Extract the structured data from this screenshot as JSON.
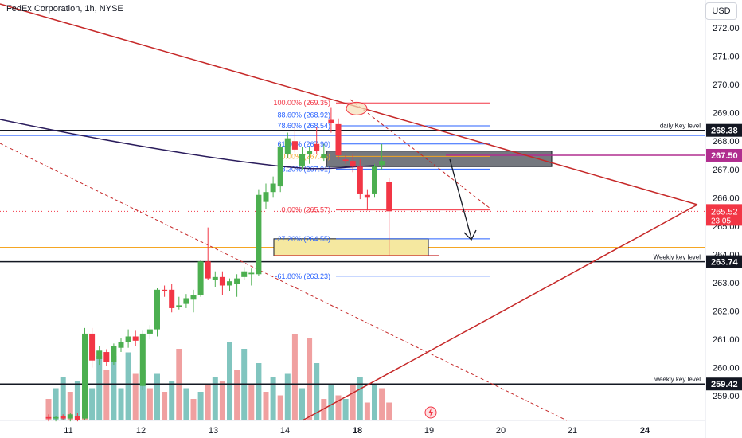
{
  "header": {
    "title": "FedEx Corporation, 1h, NYSE",
    "currency_button": "USD"
  },
  "chart_data": {
    "type": "candlestick",
    "title": "FedEx Corporation, 1h, NYSE",
    "ylim": [
      258.1,
      272.6
    ],
    "y_ticks": [
      259,
      260,
      261,
      262,
      263,
      264,
      265,
      266,
      267,
      268,
      269,
      270,
      271,
      272
    ],
    "x_ticks": [
      "11",
      "12",
      "13",
      "14",
      "18",
      "19",
      "20",
      "21",
      "24"
    ],
    "candles": [
      {
        "o": 258.25,
        "h": 258.35,
        "l": 258.1,
        "c": 258.2
      },
      {
        "o": 258.2,
        "h": 258.3,
        "l": 258.1,
        "c": 258.25
      },
      {
        "o": 258.3,
        "h": 258.35,
        "l": 258.15,
        "c": 258.2
      },
      {
        "o": 258.2,
        "h": 258.4,
        "l": 258.1,
        "c": 258.35
      },
      {
        "o": 258.3,
        "h": 258.4,
        "l": 258.1,
        "c": 258.15
      },
      {
        "o": 258.2,
        "h": 261.4,
        "l": 258.15,
        "c": 261.2
      },
      {
        "o": 261.2,
        "h": 261.4,
        "l": 260.0,
        "c": 260.25
      },
      {
        "o": 260.3,
        "h": 260.75,
        "l": 260.1,
        "c": 260.6
      },
      {
        "o": 260.55,
        "h": 260.65,
        "l": 260.05,
        "c": 260.2
      },
      {
        "o": 260.2,
        "h": 260.85,
        "l": 260.1,
        "c": 260.75
      },
      {
        "o": 260.7,
        "h": 261.05,
        "l": 260.55,
        "c": 260.9
      },
      {
        "o": 260.9,
        "h": 261.35,
        "l": 260.7,
        "c": 261.1
      },
      {
        "o": 261.1,
        "h": 261.3,
        "l": 260.75,
        "c": 260.95
      },
      {
        "o": 259.35,
        "h": 261.3,
        "l": 259.2,
        "c": 261.2
      },
      {
        "o": 261.2,
        "h": 261.5,
        "l": 261.0,
        "c": 261.35
      },
      {
        "o": 261.35,
        "h": 262.8,
        "l": 261.1,
        "c": 262.75
      },
      {
        "o": 262.75,
        "h": 262.9,
        "l": 262.5,
        "c": 262.7
      },
      {
        "o": 262.75,
        "h": 262.95,
        "l": 261.95,
        "c": 262.1
      },
      {
        "o": 262.15,
        "h": 262.5,
        "l": 262.05,
        "c": 262.2
      },
      {
        "o": 262.25,
        "h": 262.6,
        "l": 262.1,
        "c": 262.45
      },
      {
        "o": 262.4,
        "h": 262.75,
        "l": 261.95,
        "c": 262.55
      },
      {
        "o": 262.55,
        "h": 263.8,
        "l": 262.5,
        "c": 263.75
      },
      {
        "o": 263.75,
        "h": 264.95,
        "l": 263.1,
        "c": 263.15
      },
      {
        "o": 263.1,
        "h": 263.4,
        "l": 262.85,
        "c": 263.2
      },
      {
        "o": 263.2,
        "h": 263.4,
        "l": 262.55,
        "c": 262.9
      },
      {
        "o": 262.9,
        "h": 263.15,
        "l": 262.7,
        "c": 263.05
      },
      {
        "o": 262.95,
        "h": 263.3,
        "l": 262.5,
        "c": 263.15
      },
      {
        "o": 263.2,
        "h": 263.55,
        "l": 263.1,
        "c": 263.4
      },
      {
        "o": 263.3,
        "h": 263.5,
        "l": 262.9,
        "c": 263.35
      },
      {
        "o": 263.3,
        "h": 266.3,
        "l": 263.25,
        "c": 266.1
      },
      {
        "o": 265.85,
        "h": 266.5,
        "l": 265.6,
        "c": 266.2
      },
      {
        "o": 266.2,
        "h": 266.75,
        "l": 266.0,
        "c": 266.5
      },
      {
        "o": 266.4,
        "h": 267.9,
        "l": 266.2,
        "c": 267.8
      },
      {
        "o": 267.55,
        "h": 268.3,
        "l": 267.4,
        "c": 268.1
      },
      {
        "o": 268.0,
        "h": 268.6,
        "l": 267.6,
        "c": 267.7
      },
      {
        "o": 267.1,
        "h": 267.8,
        "l": 267.0,
        "c": 267.55
      },
      {
        "o": 267.55,
        "h": 267.8,
        "l": 267.2,
        "c": 267.65
      },
      {
        "o": 267.9,
        "h": 268.5,
        "l": 267.55,
        "c": 267.65
      },
      {
        "o": 267.4,
        "h": 267.9,
        "l": 267.3,
        "c": 267.55
      },
      {
        "o": 268.75,
        "h": 269.2,
        "l": 268.3,
        "c": 268.65
      },
      {
        "o": 268.6,
        "h": 268.8,
        "l": 267.35,
        "c": 267.5
      },
      {
        "o": 267.35,
        "h": 267.5,
        "l": 267.2,
        "c": 267.3
      },
      {
        "o": 267.3,
        "h": 267.55,
        "l": 266.9,
        "c": 267.1
      },
      {
        "o": 267.1,
        "h": 267.35,
        "l": 265.95,
        "c": 266.15
      },
      {
        "o": 266.1,
        "h": 266.3,
        "l": 265.55,
        "c": 266.0
      },
      {
        "o": 266.15,
        "h": 267.2,
        "l": 266.0,
        "c": 267.1
      },
      {
        "o": 267.15,
        "h": 267.9,
        "l": 267.0,
        "c": 267.3
      },
      {
        "o": 266.55,
        "h": 266.7,
        "l": 263.95,
        "c": 265.52
      }
    ],
    "volume": [
      {
        "v": 0.6,
        "up": false
      },
      {
        "v": 0.9,
        "up": true
      },
      {
        "v": 1.2,
        "up": true
      },
      {
        "v": 0.8,
        "up": false
      },
      {
        "v": 1.1,
        "up": true
      },
      {
        "v": 2.3,
        "up": false
      },
      {
        "v": 0.9,
        "up": true
      },
      {
        "v": 1.8,
        "up": true
      },
      {
        "v": 1.4,
        "up": false
      },
      {
        "v": 1.8,
        "up": true
      },
      {
        "v": 0.9,
        "up": true
      },
      {
        "v": 1.9,
        "up": true
      },
      {
        "v": 1.3,
        "up": false
      },
      {
        "v": 1.4,
        "up": true
      },
      {
        "v": 0.9,
        "up": false
      },
      {
        "v": 1.3,
        "up": true
      },
      {
        "v": 0.8,
        "up": false
      },
      {
        "v": 1.1,
        "up": true
      },
      {
        "v": 2.0,
        "up": false
      },
      {
        "v": 0.9,
        "up": true
      },
      {
        "v": 0.6,
        "up": false
      },
      {
        "v": 0.8,
        "up": true
      },
      {
        "v": 1.0,
        "up": false
      },
      {
        "v": 1.2,
        "up": true
      },
      {
        "v": 1.1,
        "up": false
      },
      {
        "v": 2.2,
        "up": true
      },
      {
        "v": 1.4,
        "up": false
      },
      {
        "v": 2.0,
        "up": true
      },
      {
        "v": 1.0,
        "up": false
      },
      {
        "v": 1.6,
        "up": true
      },
      {
        "v": 0.8,
        "up": false
      },
      {
        "v": 1.2,
        "up": true
      },
      {
        "v": 0.7,
        "up": false
      },
      {
        "v": 1.3,
        "up": true
      },
      {
        "v": 2.4,
        "up": false
      },
      {
        "v": 0.9,
        "up": true
      },
      {
        "v": 2.3,
        "up": false
      },
      {
        "v": 1.6,
        "up": true
      },
      {
        "v": 0.6,
        "up": false
      },
      {
        "v": 1.0,
        "up": true
      },
      {
        "v": 0.7,
        "up": false
      },
      {
        "v": 0.6,
        "up": true
      },
      {
        "v": 1.0,
        "up": false
      },
      {
        "v": 1.2,
        "up": true
      },
      {
        "v": 0.5,
        "up": false
      },
      {
        "v": 1.0,
        "up": true
      },
      {
        "v": 0.9,
        "up": false
      },
      {
        "v": 0.5,
        "up": false
      }
    ],
    "fib_levels": [
      {
        "label": "100.00% (269.35)",
        "price": 269.35,
        "color": "#f23645"
      },
      {
        "label": "88.60% (268.92)",
        "price": 268.92,
        "color": "#2962ff"
      },
      {
        "label": "78.60% (268.54)",
        "price": 268.54,
        "color": "#2962ff"
      },
      {
        "label": "61.80% (267.90)",
        "price": 267.9,
        "color": "#2962ff"
      },
      {
        "label": "50.00% (267.46)",
        "price": 267.46,
        "color": "#f5a623"
      },
      {
        "label": "38.20% (267.01)",
        "price": 267.01,
        "color": "#2962ff"
      },
      {
        "label": "0.00% (265.57)",
        "price": 265.57,
        "color": "#f23645"
      },
      {
        "label": "-27.20% (264.55)",
        "price": 264.55,
        "color": "#2962ff"
      },
      {
        "label": "-61.80% (263.23)",
        "price": 263.23,
        "color": "#2962ff"
      }
    ],
    "key_levels": [
      {
        "label": "daily Key level",
        "price": 268.38
      },
      {
        "label": "Weekly key level",
        "price": 263.74
      },
      {
        "label": "weekly key level",
        "price": 259.42
      }
    ],
    "price_badges": [
      {
        "text": "268.38",
        "price": 268.38,
        "bg": "#131722",
        "fg": "#ffffff"
      },
      {
        "text": "267.50",
        "price": 267.5,
        "bg": "#b02e8f",
        "fg": "#ffffff"
      },
      {
        "text": "263.74",
        "price": 263.74,
        "bg": "#131722",
        "fg": "#ffffff"
      },
      {
        "text": "259.42",
        "price": 259.42,
        "bg": "#131722",
        "fg": "#ffffff"
      }
    ],
    "last_price": {
      "price": 265.52,
      "text": "265.52",
      "countdown": "23:05",
      "color": "#f23645"
    },
    "horizontal_lines": [
      {
        "price": 268.2,
        "color": "#2962ff",
        "style": "solid"
      },
      {
        "price": 264.25,
        "color": "#f5a623",
        "style": "solid"
      },
      {
        "price": 260.2,
        "color": "#2962ff",
        "style": "solid"
      }
    ],
    "zones": [
      {
        "name": "supply-zone",
        "price_top": 267.65,
        "price_bottom": 267.1,
        "color": "#5d6068"
      },
      {
        "name": "demand-zone",
        "price_top": 264.55,
        "price_bottom": 263.95,
        "color": "#f5e8a0"
      }
    ],
    "colors": {
      "up": "#4caf50",
      "down": "#f23645",
      "volume_up": "#81c5bf",
      "volume_down": "#f0a0a0",
      "ma": "#2a1c5c",
      "trend": "#c62828"
    }
  }
}
